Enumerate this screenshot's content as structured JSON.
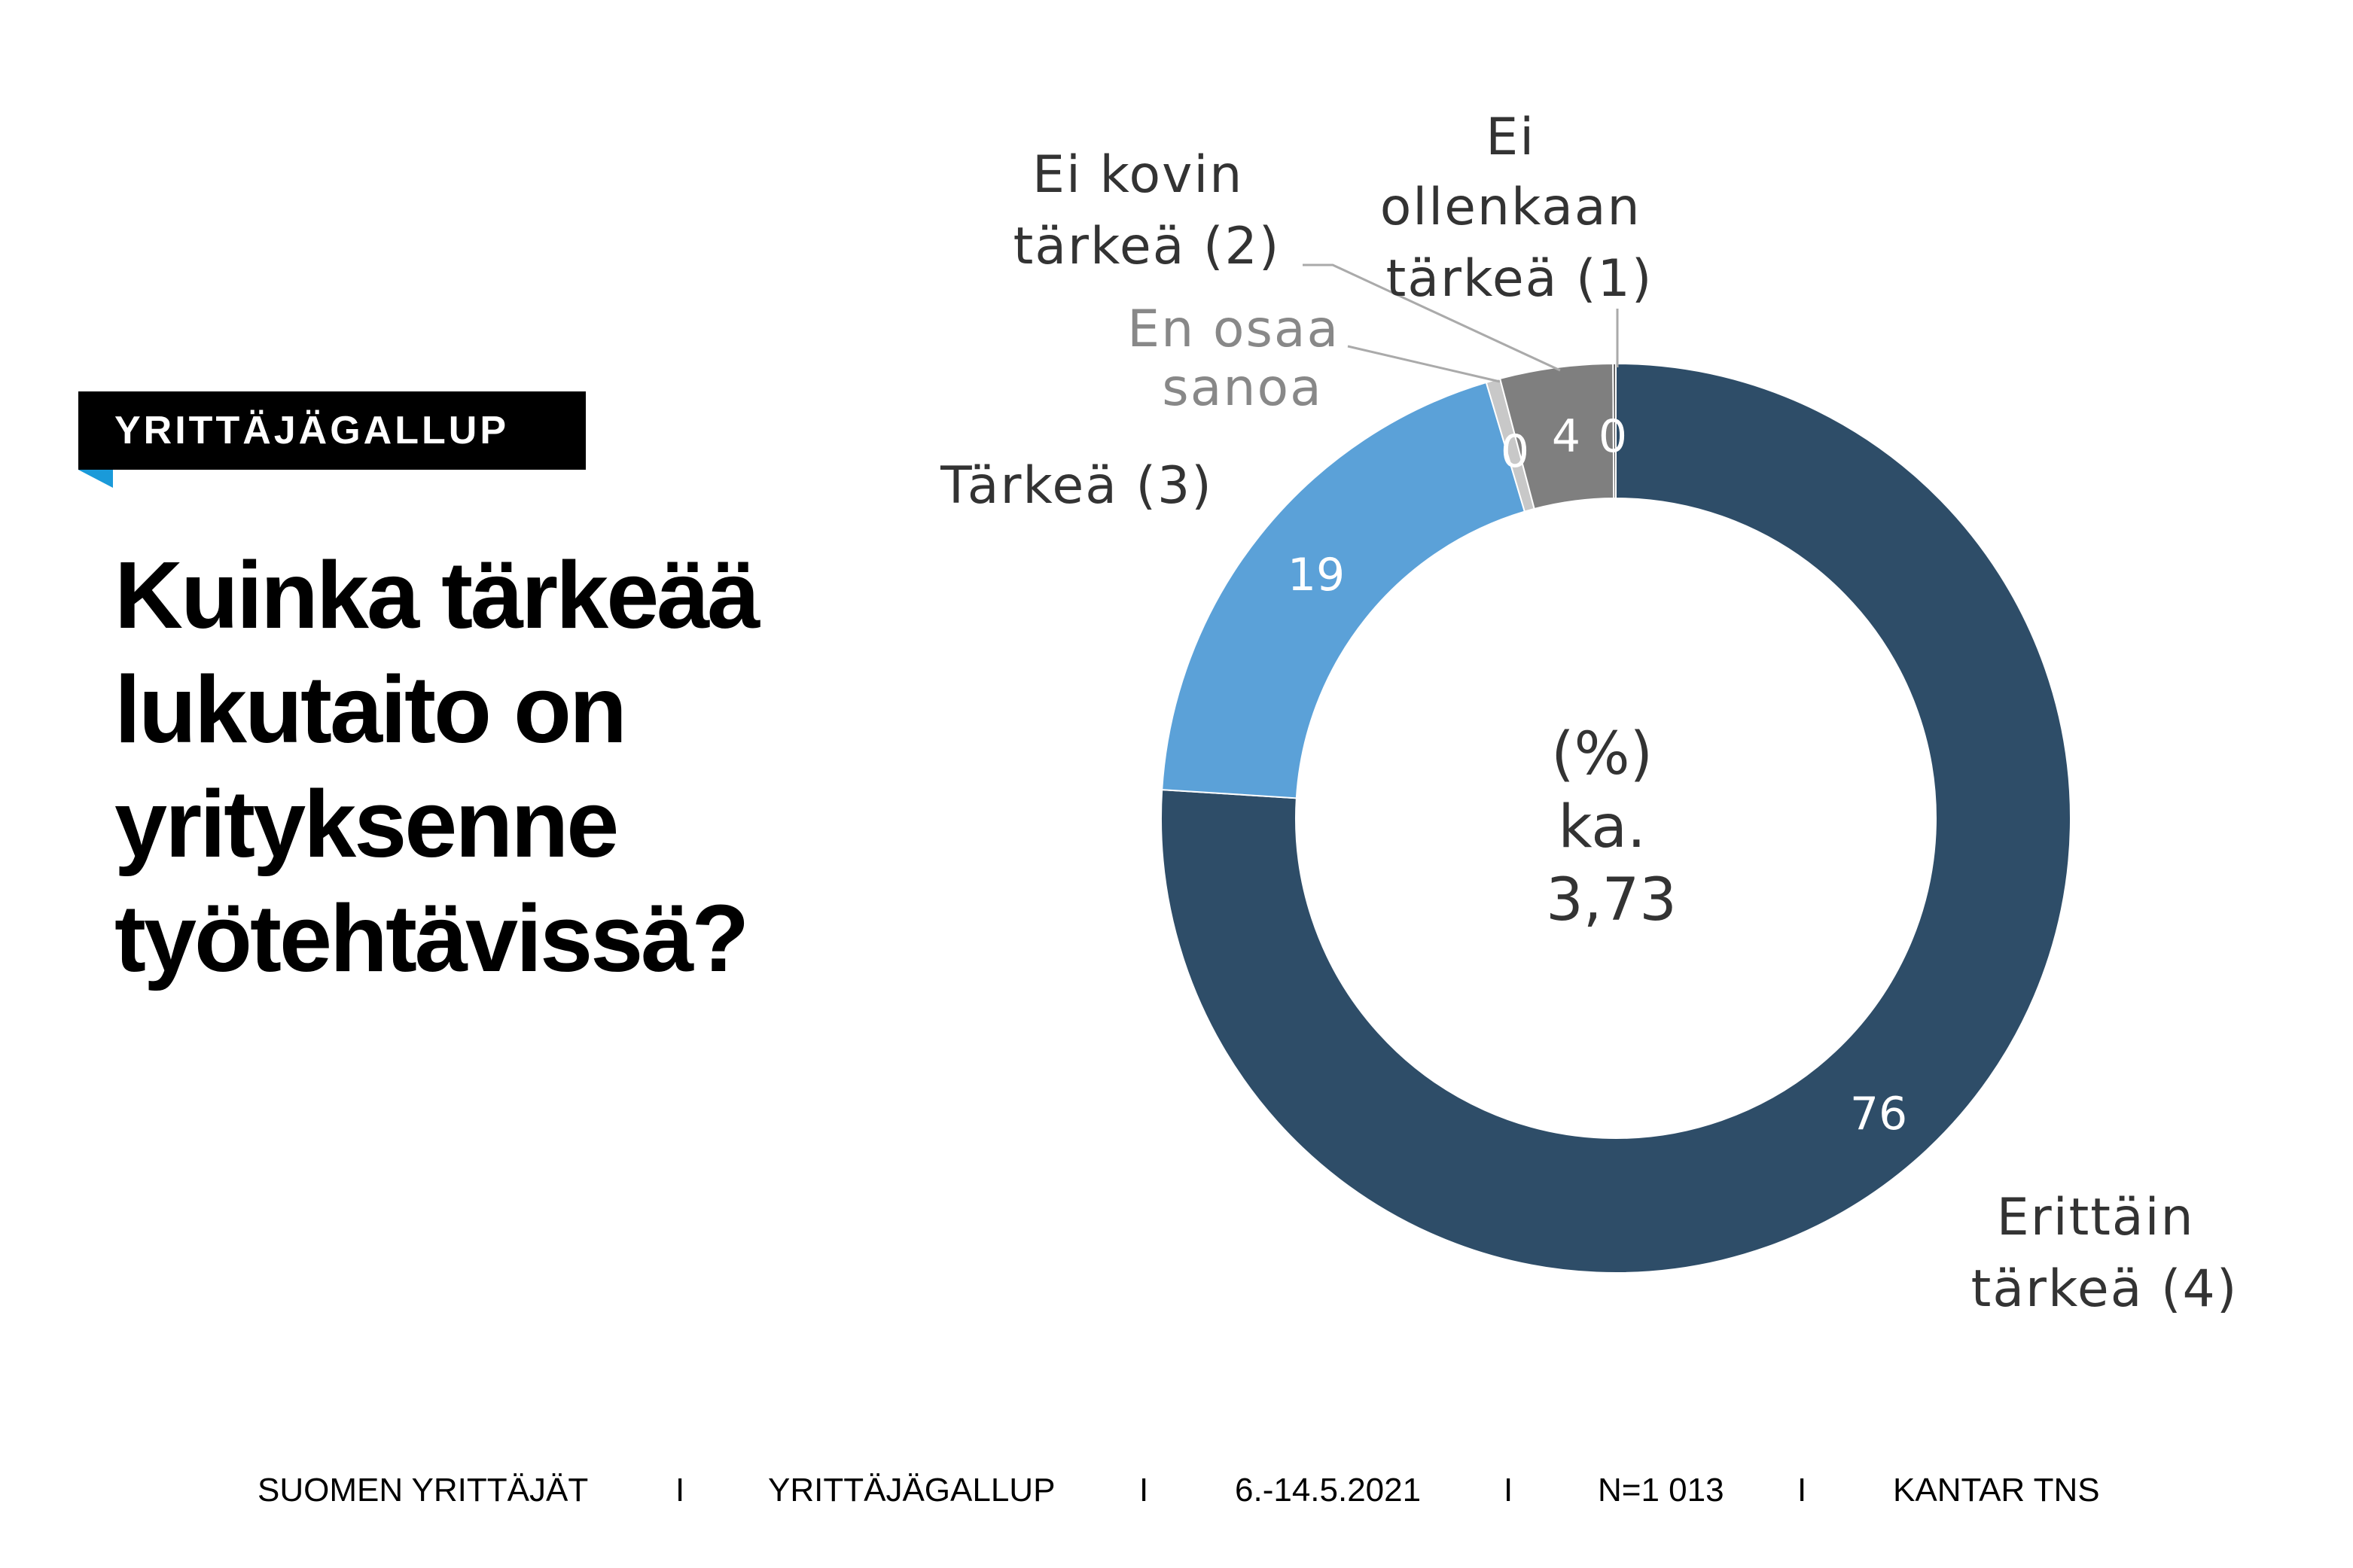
{
  "badge": "YRITTÄJÄGALLUP",
  "headline": [
    "Kuinka tärkeää",
    "lukutaito on",
    "yrityksenne",
    "työtehtävissä?"
  ],
  "chart_data": {
    "type": "pie",
    "unit": "(%)",
    "center_lines": [
      "(%)",
      "ka.",
      "3,73"
    ],
    "slices": [
      {
        "label_lines": [
          "Erittäin",
          "tärkeä (4)"
        ],
        "value": 76,
        "value_text": "76",
        "color": "#2e4d68"
      },
      {
        "label_lines": [
          "Tärkeä (3)"
        ],
        "value": 19.4,
        "value_text": "19",
        "color": "#5ba1d8"
      },
      {
        "label_lines": [
          "En osaa",
          "sanoa"
        ],
        "value": 0.5,
        "value_text": "0",
        "color": "#c8c8c8"
      },
      {
        "label_lines": [
          "Ei kovin",
          "tärkeä (2)"
        ],
        "value": 4,
        "value_text": "4",
        "color": "#7f7f7f"
      },
      {
        "label_lines": [
          "Ei",
          "ollenkaan",
          "tärkeä (1)"
        ],
        "value": 0.1,
        "value_text": "0",
        "color": "#555555"
      }
    ]
  },
  "footer": [
    "SUOMEN YRITTÄJÄT",
    "I",
    "YRITTÄJÄGALLUP",
    "I",
    "6.-14.5.2021",
    "I",
    "N=1 013",
    "I",
    "KANTAR TNS"
  ]
}
